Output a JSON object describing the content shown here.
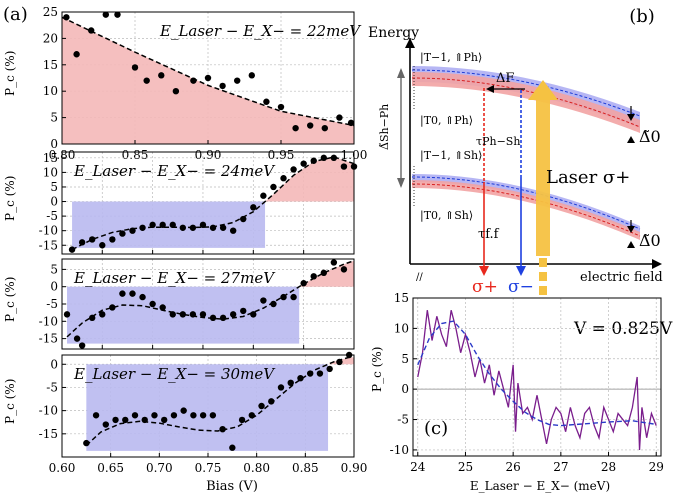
{
  "figure": {
    "label_a": "(a)",
    "label_b": "(b)",
    "label_c": "(c)"
  },
  "panel_a": {
    "xlabel": "Bias (V)",
    "ylabel": "P_c (%)",
    "subplots": [
      {
        "title": "E_Laser − E_X− = 22meV",
        "xlim": [
          0.8,
          1.0
        ],
        "ylim": [
          0,
          25
        ],
        "xticks": [
          0.8,
          0.85,
          0.9,
          0.95,
          1.0
        ],
        "xtick_labels": [
          "0.80",
          "0.85",
          "0.90",
          "0.95",
          "1.00"
        ],
        "yticks": [
          0,
          5,
          10,
          15,
          20,
          25
        ],
        "points": [
          [
            0.803,
            24
          ],
          [
            0.81,
            17
          ],
          [
            0.82,
            21.5
          ],
          [
            0.83,
            24.5
          ],
          [
            0.838,
            24.5
          ],
          [
            0.85,
            14.5
          ],
          [
            0.858,
            12
          ],
          [
            0.868,
            13
          ],
          [
            0.878,
            10
          ],
          [
            0.89,
            12
          ],
          [
            0.9,
            12.5
          ],
          [
            0.91,
            11
          ],
          [
            0.92,
            12
          ],
          [
            0.93,
            13
          ],
          [
            0.94,
            8
          ],
          [
            0.95,
            7
          ],
          [
            0.96,
            3
          ],
          [
            0.97,
            3.5
          ],
          [
            0.98,
            3
          ],
          [
            0.99,
            5
          ],
          [
            0.998,
            4
          ]
        ],
        "fit": [
          [
            0.8,
            24
          ],
          [
            0.85,
            17.4
          ],
          [
            0.9,
            11.1
          ],
          [
            0.95,
            6.2
          ],
          [
            1.0,
            3.5
          ]
        ],
        "shade": "positive"
      },
      {
        "title": "E_Laser − E_X− = 24meV",
        "xlim": [
          0.61,
          0.9
        ],
        "ylim": [
          -18,
          17
        ],
        "yticks": [
          -15,
          -10,
          -5,
          0,
          5,
          10,
          15
        ],
        "shade_xmin": 0.62,
        "points": [
          [
            0.62,
            -16.5
          ],
          [
            0.63,
            -14
          ],
          [
            0.64,
            -13
          ],
          [
            0.65,
            -15
          ],
          [
            0.66,
            -13
          ],
          [
            0.67,
            -11
          ],
          [
            0.68,
            -10
          ],
          [
            0.69,
            -9
          ],
          [
            0.7,
            -8
          ],
          [
            0.71,
            -8
          ],
          [
            0.72,
            -8
          ],
          [
            0.73,
            -9
          ],
          [
            0.74,
            -9
          ],
          [
            0.75,
            -8
          ],
          [
            0.76,
            -9
          ],
          [
            0.77,
            -9
          ],
          [
            0.78,
            -10
          ],
          [
            0.79,
            -6
          ],
          [
            0.8,
            -2
          ],
          [
            0.81,
            2
          ],
          [
            0.82,
            5
          ],
          [
            0.83,
            8
          ],
          [
            0.84,
            11
          ],
          [
            0.85,
            13
          ],
          [
            0.86,
            14
          ],
          [
            0.87,
            15
          ],
          [
            0.88,
            15
          ],
          [
            0.89,
            12
          ],
          [
            0.9,
            12
          ]
        ],
        "fit": [
          [
            0.62,
            -16.5
          ],
          [
            0.64,
            -13
          ],
          [
            0.66,
            -10.6
          ],
          [
            0.68,
            -9.3
          ],
          [
            0.7,
            -8.8
          ],
          [
            0.72,
            -8.8
          ],
          [
            0.74,
            -8.9
          ],
          [
            0.76,
            -8.7
          ],
          [
            0.78,
            -7.2
          ],
          [
            0.8,
            -3.5
          ],
          [
            0.82,
            2.5
          ],
          [
            0.84,
            9
          ],
          [
            0.86,
            13.7
          ],
          [
            0.88,
            15.3
          ],
          [
            0.9,
            13
          ]
        ]
      },
      {
        "title": "E_Laser − E_X− = 27meV",
        "xlim": [
          0.61,
          0.9
        ],
        "ylim": [
          -18,
          8
        ],
        "yticks": [
          -15,
          -10,
          -5,
          0,
          5
        ],
        "shade_xmin": 0.615,
        "points": [
          [
            0.615,
            -8
          ],
          [
            0.625,
            -15
          ],
          [
            0.63,
            -17
          ],
          [
            0.64,
            -9
          ],
          [
            0.65,
            -8
          ],
          [
            0.66,
            -6
          ],
          [
            0.67,
            -2
          ],
          [
            0.68,
            -2
          ],
          [
            0.69,
            -3
          ],
          [
            0.7,
            -5
          ],
          [
            0.71,
            -6
          ],
          [
            0.72,
            -8
          ],
          [
            0.73,
            -8
          ],
          [
            0.74,
            -8
          ],
          [
            0.75,
            -8
          ],
          [
            0.76,
            -9
          ],
          [
            0.77,
            -9
          ],
          [
            0.78,
            -8
          ],
          [
            0.79,
            -7
          ],
          [
            0.8,
            -8
          ],
          [
            0.81,
            -4
          ],
          [
            0.82,
            -5
          ],
          [
            0.83,
            -3
          ],
          [
            0.84,
            -3
          ],
          [
            0.85,
            1
          ],
          [
            0.86,
            3
          ],
          [
            0.87,
            4
          ],
          [
            0.88,
            7
          ],
          [
            0.89,
            5
          ]
        ],
        "fit": [
          [
            0.615,
            -14.5
          ],
          [
            0.63,
            -10.5
          ],
          [
            0.65,
            -6.8
          ],
          [
            0.67,
            -5.3
          ],
          [
            0.69,
            -5.5
          ],
          [
            0.71,
            -6.8
          ],
          [
            0.73,
            -8
          ],
          [
            0.75,
            -8.9
          ],
          [
            0.77,
            -9.4
          ],
          [
            0.79,
            -8.6
          ],
          [
            0.81,
            -6.2
          ],
          [
            0.83,
            -2.8
          ],
          [
            0.85,
            0.8
          ],
          [
            0.87,
            4
          ],
          [
            0.89,
            6.5
          ],
          [
            0.9,
            7.5
          ]
        ]
      },
      {
        "title": "E_Laser − E_X− = 30meV",
        "xlim": [
          0.6,
          0.9
        ],
        "ylim": [
          -20,
          2
        ],
        "xticks": [
          0.6,
          0.65,
          0.7,
          0.75,
          0.8,
          0.85,
          0.9
        ],
        "xtick_labels": [
          "0.60",
          "0.65",
          "0.70",
          "0.75",
          "0.80",
          "0.85",
          "0.90"
        ],
        "yticks": [
          -15,
          -10,
          -5,
          0
        ],
        "shade_xmin": 0.625,
        "points": [
          [
            0.625,
            -17
          ],
          [
            0.635,
            -11
          ],
          [
            0.645,
            -13
          ],
          [
            0.655,
            -12
          ],
          [
            0.665,
            -12
          ],
          [
            0.675,
            -11
          ],
          [
            0.685,
            -12
          ],
          [
            0.695,
            -11
          ],
          [
            0.705,
            -12
          ],
          [
            0.715,
            -11
          ],
          [
            0.725,
            -10
          ],
          [
            0.735,
            -11
          ],
          [
            0.745,
            -11
          ],
          [
            0.755,
            -11
          ],
          [
            0.765,
            -14
          ],
          [
            0.775,
            -18
          ],
          [
            0.785,
            -12
          ],
          [
            0.795,
            -11
          ],
          [
            0.805,
            -9
          ],
          [
            0.815,
            -8
          ],
          [
            0.825,
            -5
          ],
          [
            0.835,
            -4
          ],
          [
            0.845,
            -3
          ],
          [
            0.855,
            -2
          ],
          [
            0.865,
            -2
          ],
          [
            0.875,
            -1
          ],
          [
            0.885,
            0.5
          ],
          [
            0.895,
            2
          ]
        ],
        "fit": [
          [
            0.625,
            -17.5
          ],
          [
            0.64,
            -14.6
          ],
          [
            0.66,
            -12.8
          ],
          [
            0.68,
            -12.3
          ],
          [
            0.7,
            -12.7
          ],
          [
            0.72,
            -13.5
          ],
          [
            0.74,
            -14.2
          ],
          [
            0.76,
            -14.4
          ],
          [
            0.78,
            -13.5
          ],
          [
            0.8,
            -11
          ],
          [
            0.82,
            -7.5
          ],
          [
            0.84,
            -4
          ],
          [
            0.86,
            -1.2
          ],
          [
            0.88,
            0.6
          ],
          [
            0.895,
            1.5
          ]
        ]
      }
    ]
  },
  "panel_b": {
    "y_axis": "Energy",
    "x_axis": "electric field",
    "state1": "|T−1, ⇑Ph⟩",
    "state2": "|T0, ⇑Ph⟩",
    "state3": "|T−1, ⇑Sh⟩",
    "state4": "|T0, ⇑Sh⟩",
    "deltaF": "ΔF",
    "tau_psh": "τPh−Sh",
    "tau_ff": "τf.f",
    "delta_sph": "Δ̃Sh−Ph",
    "laser": "Laser σ+",
    "sigma_plus": "σ+",
    "sigma_minus": "σ−",
    "delta0_top": "Δ̃0",
    "delta0_bottom": "Δ̃0"
  },
  "panel_c": {
    "annotation": "V = 0.825V",
    "xlabel": "E_Laser − E_X− (meV)",
    "ylabel": "P_c (%)",
    "xlim": [
      23.9,
      29.1
    ],
    "ylim": [
      -11,
      15
    ],
    "xticks": [
      24,
      25,
      26,
      27,
      28,
      29
    ],
    "yticks": [
      -10,
      -5,
      0,
      5,
      10,
      15
    ],
    "series_noisy": [
      [
        24.0,
        2
      ],
      [
        24.1,
        6
      ],
      [
        24.2,
        13
      ],
      [
        24.3,
        8
      ],
      [
        24.4,
        12
      ],
      [
        24.5,
        9
      ],
      [
        24.6,
        7
      ],
      [
        24.7,
        13
      ],
      [
        24.8,
        10
      ],
      [
        24.9,
        6
      ],
      [
        25.0,
        9
      ],
      [
        25.1,
        6
      ],
      [
        25.2,
        2
      ],
      [
        25.3,
        5
      ],
      [
        25.4,
        1
      ],
      [
        25.5,
        4
      ],
      [
        25.6,
        -1
      ],
      [
        25.7,
        3
      ],
      [
        25.8,
        0
      ],
      [
        25.9,
        -3
      ],
      [
        26.0,
        4
      ],
      [
        26.05,
        -7
      ],
      [
        26.1,
        1
      ],
      [
        26.2,
        -4
      ],
      [
        26.3,
        -3
      ],
      [
        26.4,
        -5
      ],
      [
        26.5,
        -1
      ],
      [
        26.6,
        -5
      ],
      [
        26.7,
        -9
      ],
      [
        26.8,
        -5
      ],
      [
        26.9,
        -3
      ],
      [
        27.0,
        -4
      ],
      [
        27.1,
        -7
      ],
      [
        27.2,
        -3
      ],
      [
        27.3,
        -6
      ],
      [
        27.4,
        -8
      ],
      [
        27.5,
        -4
      ],
      [
        27.6,
        -3
      ],
      [
        27.7,
        -6
      ],
      [
        27.8,
        -8
      ],
      [
        27.9,
        -3
      ],
      [
        28.0,
        -5
      ],
      [
        28.1,
        -7
      ],
      [
        28.2,
        -4
      ],
      [
        28.3,
        -5
      ],
      [
        28.4,
        -6
      ],
      [
        28.5,
        -3
      ],
      [
        28.6,
        2
      ],
      [
        28.65,
        -10
      ],
      [
        28.7,
        -3
      ],
      [
        28.8,
        -8
      ],
      [
        28.9,
        -4
      ],
      [
        29.0,
        -6
      ]
    ],
    "series_fit": [
      [
        24.0,
        4
      ],
      [
        24.25,
        8.5
      ],
      [
        24.5,
        10.8
      ],
      [
        24.75,
        11.2
      ],
      [
        25.0,
        9
      ],
      [
        25.25,
        5.5
      ],
      [
        25.5,
        2.5
      ],
      [
        25.75,
        0
      ],
      [
        26.0,
        -2
      ],
      [
        26.25,
        -3.8
      ],
      [
        26.5,
        -5
      ],
      [
        26.75,
        -5.8
      ],
      [
        27.0,
        -6
      ],
      [
        27.5,
        -5.7
      ],
      [
        28.0,
        -5.4
      ],
      [
        28.5,
        -5.2
      ],
      [
        29.0,
        -5.8
      ]
    ]
  },
  "colors": {
    "pos_shade": "#f4b8b8",
    "neg_shade": "#b9b9f0",
    "noisy": "#7a1e8c",
    "fit_c": "#2b3ac8",
    "laser": "#f5c242",
    "sigma_plus": "#e8281d",
    "sigma_minus": "#1e40e0"
  }
}
